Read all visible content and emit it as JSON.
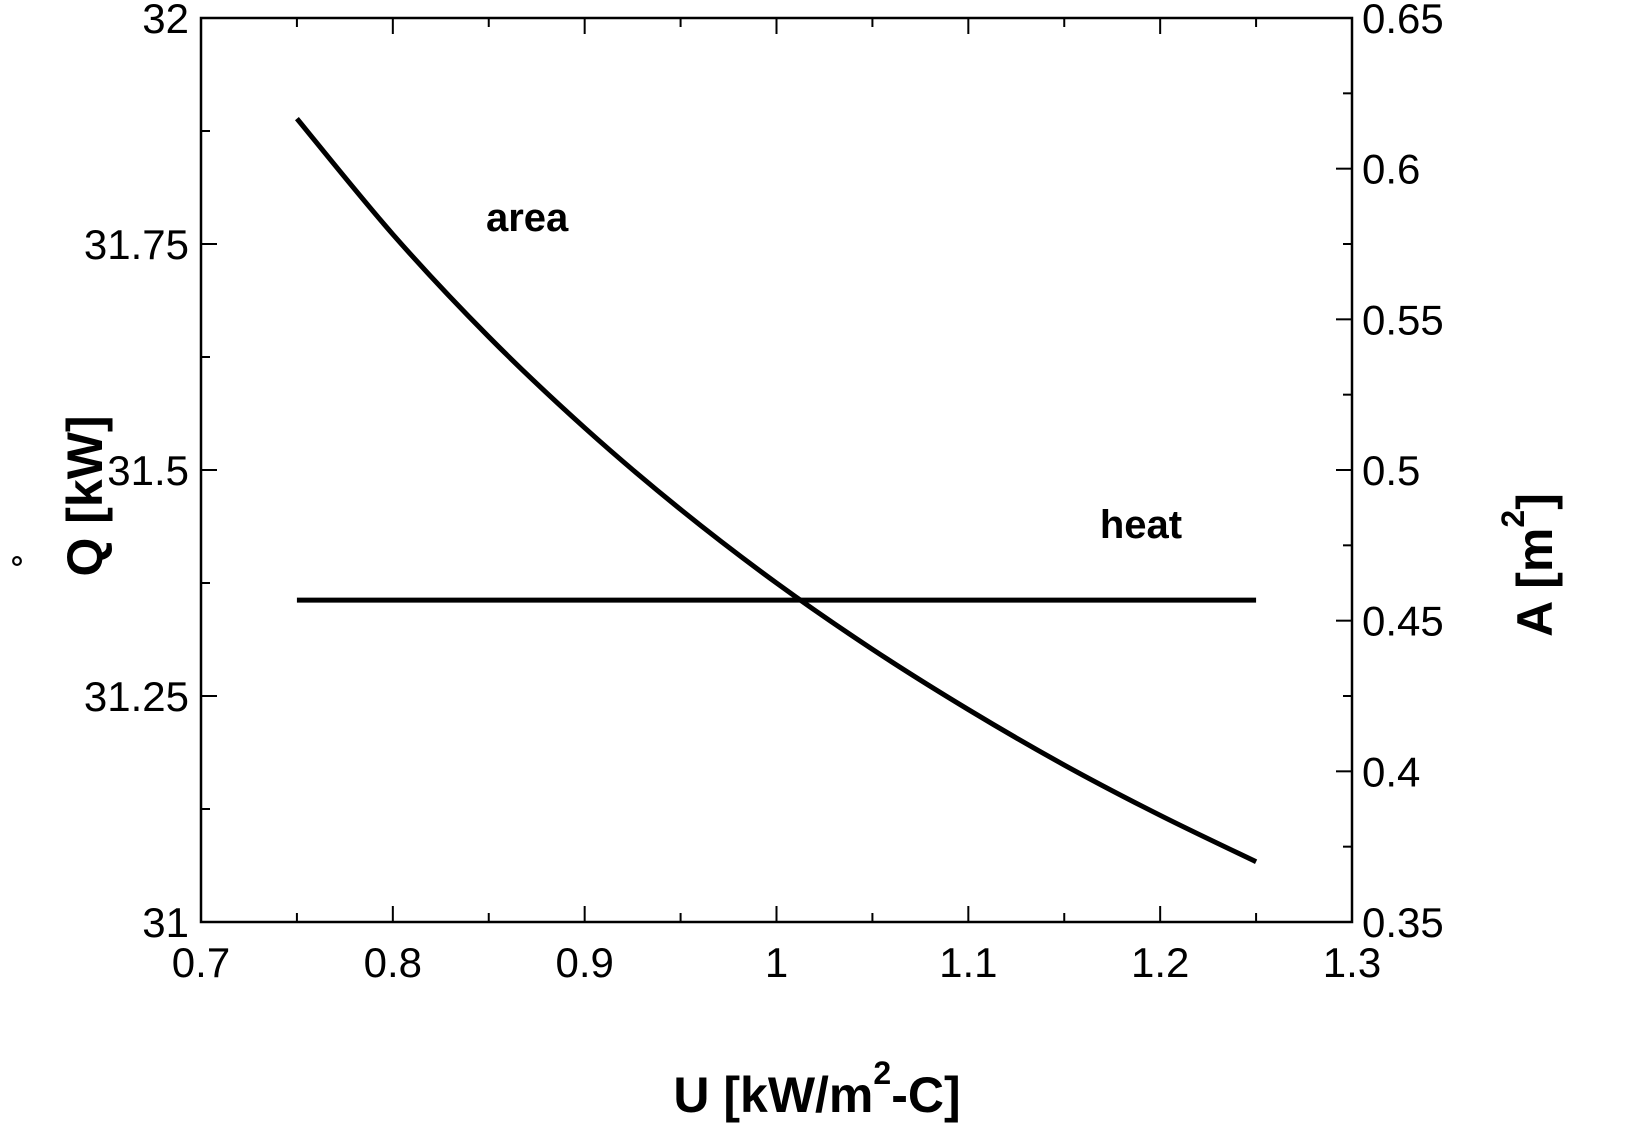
{
  "chart_data": {
    "type": "line",
    "title": "",
    "xlabel": {
      "main": "U  [kW/m",
      "sup": "2",
      "tail": "-C]"
    },
    "ylabel_left": {
      "dot": "˚",
      "main": "Q  [kW]"
    },
    "ylabel_right": {
      "main": "A  [m",
      "sup": "2",
      "tail": "]"
    },
    "xlim": [
      0.7,
      1.3
    ],
    "ylim_left": [
      31,
      32
    ],
    "ylim_right": [
      0.35,
      0.65
    ],
    "x_ticks": [
      "0.7",
      "0.8",
      "0.9",
      "1",
      "1.1",
      "1.2",
      "1.3"
    ],
    "y_left_ticks": [
      "31",
      "31.25",
      "31.5",
      "31.75",
      "32"
    ],
    "y_right_ticks": [
      "0.35",
      "0.4",
      "0.45",
      "0.5",
      "0.55",
      "0.6",
      "0.65"
    ],
    "grid": false,
    "legend": "none",
    "series": [
      {
        "name": "heat",
        "axis": "left",
        "x": [
          0.75,
          1.25
        ],
        "y": [
          31.356,
          31.356
        ]
      },
      {
        "name": "area",
        "axis": "right",
        "x": [
          0.75,
          0.8,
          0.85,
          0.9,
          0.95,
          1.0,
          1.05,
          1.1,
          1.15,
          1.2,
          1.25
        ],
        "y": [
          0.6166,
          0.5782,
          0.5442,
          0.514,
          0.4869,
          0.4625,
          0.4405,
          0.4205,
          0.4021,
          0.3854,
          0.37
        ]
      }
    ],
    "annotations": [
      {
        "text": "area",
        "x": 0.87,
        "y": 31.78
      },
      {
        "text": "heat",
        "x": 1.19,
        "y": 31.44
      }
    ]
  }
}
